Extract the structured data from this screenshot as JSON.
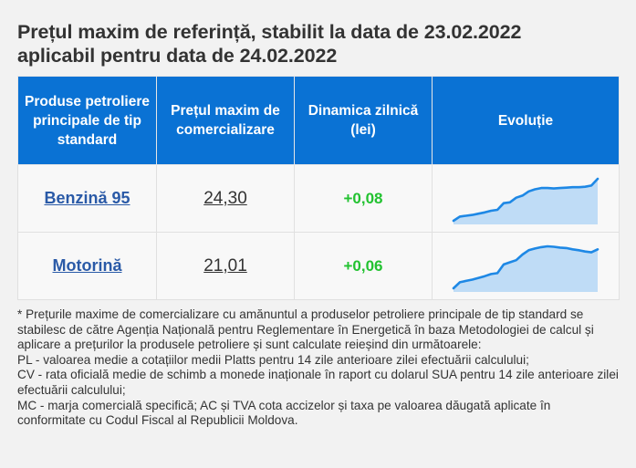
{
  "title": {
    "line1": "Prețul maxim de referință, stabilit la data de 23.02.2022",
    "line2": "aplicabil pentru data de 24.02.2022"
  },
  "table": {
    "headers": {
      "product": "Produse petroliere principale de tip standard",
      "price": "Prețul maxim de comercializare",
      "dynamics": "Dinamica zilnică (lei)",
      "evolution": "Evoluție"
    },
    "rows": [
      {
        "product": "Benzină 95",
        "price": "24,30",
        "dynamics": "+0,08",
        "trend": [
          0,
          0.1,
          0.12,
          0.14,
          0.17,
          0.2,
          0.24,
          0.26,
          0.42,
          0.44,
          0.55,
          0.6,
          0.7,
          0.75,
          0.78,
          0.78,
          0.77,
          0.78,
          0.79,
          0.8,
          0.8,
          0.81,
          0.84,
          1.0
        ]
      },
      {
        "product": "Motorină",
        "price": "21,01",
        "dynamics": "+0,06",
        "trend": [
          0,
          0.14,
          0.17,
          0.2,
          0.24,
          0.28,
          0.33,
          0.35,
          0.55,
          0.6,
          0.65,
          0.78,
          0.88,
          0.92,
          0.95,
          0.97,
          0.96,
          0.94,
          0.93,
          0.9,
          0.88,
          0.85,
          0.83,
          0.9
        ]
      }
    ]
  },
  "footnote": {
    "intro": "* Prețurile maxime de comercializare cu amănuntul a produselor petroliere principale de tip standard se stabilesc de către Agenția Națională pentru Reglementare în Energetică în baza Metodologiei de calcul și aplicare a prețurilor la produsele petroliere și sunt calculate reieșind din următoarele:",
    "pl": "PL - valoarea medie a cotațiilor medii Platts pentru 14 zile anterioare zilei efectuării calculului;",
    "cv": "CV - rata oficială medie de schimb a monede inaționale în raport cu dolarul SUA pentru 14 zile anterioare zilei efectuării calculului;",
    "mc": "MC - marja comercială specifică; AC și TVA cota accizelor și taxa pe valoarea dăugată aplicate în conformitate cu Codul Fiscal al Republicii Moldova."
  },
  "colors": {
    "header_bg": "#0a72d4",
    "link": "#2a5aa7",
    "positive": "#22c230",
    "spark_line": "#1e88e5",
    "spark_fill": "#bfdcf6"
  }
}
